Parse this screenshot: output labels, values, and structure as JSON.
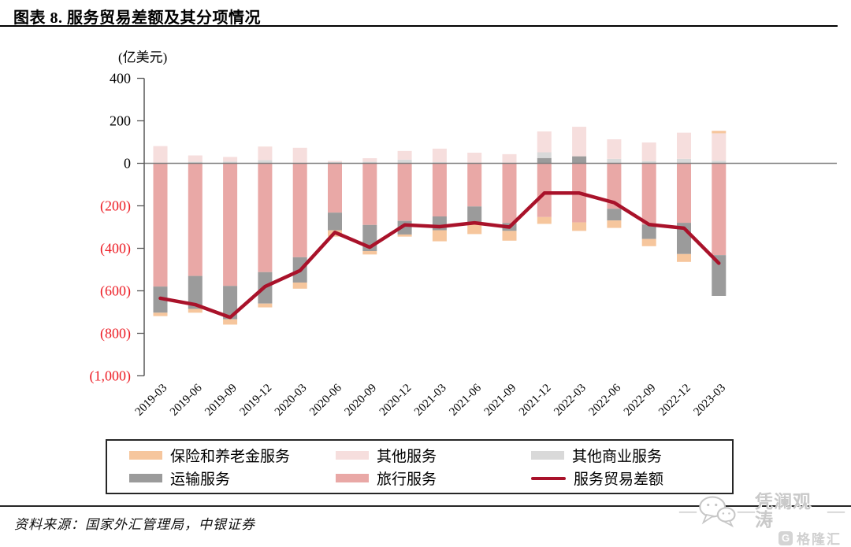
{
  "figure": {
    "title": "图表 8. 服务贸易差额及其分项情况",
    "source": "资料来源：国家外汇管理局，中银证券"
  },
  "colors": {
    "insurance": "#F6C69D",
    "other_services": "#F6DEDD",
    "other_business": "#D9D9D9",
    "transport": "#9B9B9B",
    "travel": "#E9A8A6",
    "balance_line": "#A9122A",
    "negative_tick": "#ED1C24",
    "axis": "#595959",
    "zero_line": "#7F7F7F"
  },
  "legend": {
    "items": [
      {
        "label": "保险和养老金服务",
        "color_key": "insurance",
        "swatch": "box"
      },
      {
        "label": "其他服务",
        "color_key": "other_services",
        "swatch": "box"
      },
      {
        "label": "其他商业服务",
        "color_key": "other_business",
        "swatch": "box"
      },
      {
        "label": "运输服务",
        "color_key": "transport",
        "swatch": "box"
      },
      {
        "label": "旅行服务",
        "color_key": "travel",
        "swatch": "box"
      },
      {
        "label": "服务贸易差额",
        "color_key": "balance_line",
        "swatch": "line"
      }
    ]
  },
  "watermark": {
    "dash": "—",
    "brand": "凭澜观涛",
    "logo_letter": "G",
    "logo_text": "格隆汇"
  },
  "chart_data": {
    "type": "bar",
    "subtype": "stacked-bars-with-line-overlay",
    "title": "服务贸易差额及其分项情况",
    "unit": "(亿美元)",
    "ylabel": "亿美元",
    "ylim": [
      -1000,
      400
    ],
    "grid": "zero-line-only",
    "legend_position": "bottom-box",
    "categories": [
      "2019-03",
      "2019-06",
      "2019-09",
      "2019-12",
      "2020-03",
      "2020-06",
      "2020-09",
      "2020-12",
      "2021-03",
      "2021-06",
      "2021-09",
      "2021-12",
      "2022-03",
      "2022-06",
      "2022-09",
      "2022-12",
      "2023-03"
    ],
    "stack_order_note": "series listed in stacking order outward from zero; positives stack up, negatives stack down",
    "series": [
      {
        "name": "旅行服务",
        "color_key": "travel",
        "values": [
          -580,
          -530,
          -577,
          -512,
          -442,
          -232,
          -290,
          -271,
          -250,
          -203,
          -281,
          -253,
          -278,
          -214,
          -288,
          -280,
          -432
        ]
      },
      {
        "name": "运输服务",
        "color_key": "transport",
        "values": [
          -123,
          -155,
          -157,
          -148,
          -119,
          -83,
          -123,
          -64,
          -65,
          -84,
          -37,
          25,
          33,
          -55,
          -68,
          -147,
          -192
        ]
      },
      {
        "name": "其他商业服务",
        "color_key": "other_business",
        "values": [
          0,
          7,
          8,
          15,
          0,
          6,
          7,
          17,
          5,
          0,
          0,
          27,
          0,
          21,
          10,
          21,
          12
        ]
      },
      {
        "name": "其他服务",
        "color_key": "other_services",
        "values": [
          81,
          30,
          22,
          64,
          73,
          5,
          17,
          41,
          64,
          50,
          43,
          98,
          139,
          92,
          88,
          123,
          129
        ]
      },
      {
        "name": "保险和养老金服务",
        "color_key": "insurance",
        "values": [
          -16,
          -18,
          -25,
          -18,
          -29,
          -30,
          -16,
          -10,
          -52,
          -46,
          -46,
          -32,
          -40,
          -35,
          -34,
          -37,
          12
        ]
      }
    ],
    "line_series": {
      "name": "服务贸易差额",
      "color_key": "balance_line",
      "values": [
        -635,
        -665,
        -725,
        -580,
        -505,
        -325,
        -395,
        -290,
        -298,
        -280,
        -300,
        -140,
        -140,
        -185,
        -288,
        -305,
        -470
      ]
    },
    "yticks": [
      {
        "value": 400,
        "label": "400",
        "negative": false
      },
      {
        "value": 200,
        "label": "200",
        "negative": false
      },
      {
        "value": 0,
        "label": "0",
        "negative": false
      },
      {
        "value": -200,
        "label": "(200)",
        "negative": true
      },
      {
        "value": -400,
        "label": "(400)",
        "negative": true
      },
      {
        "value": -600,
        "label": "(600)",
        "negative": true
      },
      {
        "value": -800,
        "label": "(800)",
        "negative": true
      },
      {
        "value": -1000,
        "label": "(1,000)",
        "negative": true
      }
    ]
  }
}
